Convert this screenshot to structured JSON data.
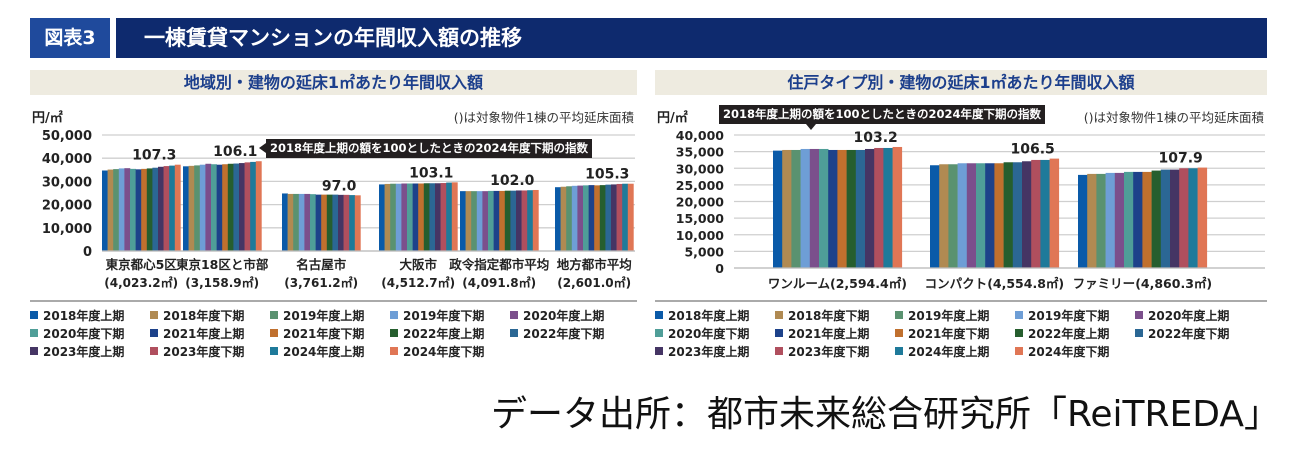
{
  "header": {
    "badge": "図表3",
    "title": "一棟賃貸マンションの年間収入額の推移"
  },
  "source": "データ出所：都市未来総合研究所「ReiTREDA」",
  "legend": [
    {
      "label": "2018年度上期",
      "color": "#0a5aa8"
    },
    {
      "label": "2018年度下期",
      "color": "#b08a52"
    },
    {
      "label": "2019年度上期",
      "color": "#5a9270"
    },
    {
      "label": "2019年度下期",
      "color": "#6e9ed6"
    },
    {
      "label": "2020年度上期",
      "color": "#7b4f8c"
    },
    {
      "label": "2020年度下期",
      "color": "#4f9e98"
    },
    {
      "label": "2021年度上期",
      "color": "#1d428a"
    },
    {
      "label": "2021年度下期",
      "color": "#c0702e"
    },
    {
      "label": "2022年度上期",
      "color": "#265e2e"
    },
    {
      "label": "2022年度下期",
      "color": "#2b6794"
    },
    {
      "label": "2023年度上期",
      "color": "#453564"
    },
    {
      "label": "2023年度下期",
      "color": "#b04f5e"
    },
    {
      "label": "2024年度上期",
      "color": "#1e7a9a"
    },
    {
      "label": "2024年度下期",
      "color": "#e07655"
    }
  ],
  "chart_data": [
    {
      "type": "bar",
      "title": "地域別・建物の延床1㎡あたり年間収入額",
      "ylabel": "円/㎡",
      "note": "()は対象物件1棟の平均延床面積",
      "callout": "2018年度上期の額を100としたときの2024年度下期の指数",
      "ylim": [
        0,
        50000
      ],
      "yticks": [
        "0",
        "10,000",
        "20,000",
        "30,000",
        "40,000",
        "50,000"
      ],
      "ytick_values": [
        0,
        10000,
        20000,
        30000,
        40000,
        50000
      ],
      "grid": true,
      "categories": [
        {
          "name": "東京都心5区",
          "area": "(4,023.2㎡)",
          "index": "107.3",
          "values": [
            34700,
            35100,
            35300,
            35600,
            35700,
            35400,
            35200,
            35400,
            35600,
            35900,
            36300,
            36600,
            36800,
            37200
          ]
        },
        {
          "name": "東京18区と市部",
          "area": "(3,158.9㎡)",
          "index": "106.1",
          "values": [
            36500,
            36700,
            36900,
            37200,
            37600,
            37400,
            37200,
            37400,
            37600,
            37700,
            37900,
            38200,
            38400,
            38700
          ]
        },
        {
          "name": "名古屋市",
          "area": "(3,761.2㎡)",
          "index": "97.0",
          "values": [
            24800,
            24600,
            24600,
            24600,
            24600,
            24500,
            24300,
            24300,
            24300,
            24300,
            24200,
            24200,
            24100,
            24000
          ]
        },
        {
          "name": "大阪市",
          "area": "(4,512.7㎡)",
          "index": "103.1",
          "values": [
            28700,
            28900,
            29000,
            29000,
            29100,
            29100,
            29100,
            29100,
            29200,
            29200,
            29200,
            29300,
            29500,
            29600
          ]
        },
        {
          "name": "政令指定都市平均",
          "area": "(4,091.8㎡)",
          "index": "102.0",
          "values": [
            25800,
            25800,
            25800,
            25800,
            25800,
            25900,
            25900,
            25900,
            26000,
            26000,
            26100,
            26100,
            26200,
            26300
          ]
        },
        {
          "name": "地方都市平均",
          "area": "(2,601.0㎡)",
          "index": "105.3",
          "values": [
            27500,
            27700,
            27900,
            28100,
            28200,
            28300,
            28400,
            28300,
            28400,
            28600,
            28700,
            28900,
            29000,
            29000
          ]
        }
      ]
    },
    {
      "type": "bar",
      "title": "住戸タイプ別・建物の延床1㎡あたり年間収入額",
      "ylabel": "円/㎡",
      "note": "()は対象物件1棟の平均延床面積",
      "callout": "2018年度上期の額を100としたときの2024年度下期の指数",
      "ylim": [
        0,
        40000
      ],
      "yticks": [
        "0",
        "5,000",
        "10,000",
        "15,000",
        "20,000",
        "25,000",
        "30,000",
        "35,000",
        "40,000"
      ],
      "ytick_values": [
        0,
        5000,
        10000,
        15000,
        20000,
        25000,
        30000,
        35000,
        40000
      ],
      "grid": true,
      "categories": [
        {
          "name": "ワンルーム",
          "area": "(2,594.4㎡)",
          "index": "103.2",
          "values": [
            35300,
            35500,
            35500,
            35800,
            35800,
            35800,
            35500,
            35500,
            35500,
            35500,
            35800,
            36100,
            36100,
            36400
          ]
        },
        {
          "name": "コンパクト",
          "area": "(4,554.8㎡)",
          "index": "106.5",
          "values": [
            30900,
            31200,
            31200,
            31500,
            31500,
            31500,
            31500,
            31500,
            31800,
            31800,
            32100,
            32500,
            32500,
            32900
          ]
        },
        {
          "name": "ファミリー",
          "area": "(4,860.3㎡)",
          "index": "107.9",
          "values": [
            28000,
            28300,
            28300,
            28600,
            28600,
            28900,
            28900,
            28900,
            29300,
            29600,
            29600,
            30000,
            30000,
            30200
          ]
        }
      ]
    }
  ]
}
